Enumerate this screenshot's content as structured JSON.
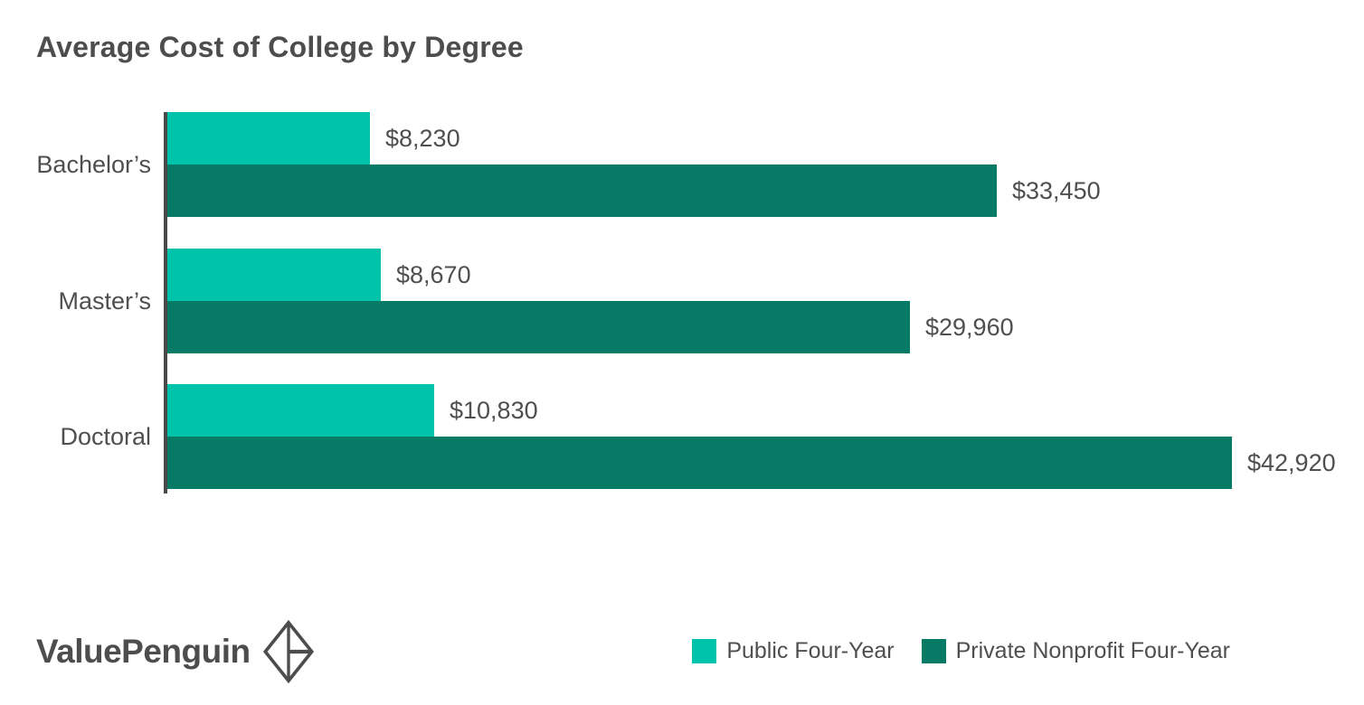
{
  "title": "Average Cost of College by Degree",
  "logo": {
    "text": "ValuePenguin",
    "icon": "valuepenguin-diamond-icon",
    "color": "#4d4d4d"
  },
  "colors": {
    "public_series": "#00C3AB",
    "private_series": "#077A65",
    "axis": "#4A4A4A",
    "title_text": "#4D4D4D",
    "label_text": "#4F4F4F",
    "background": "#FFFFFF"
  },
  "chart_data": {
    "type": "bar",
    "orientation": "horizontal",
    "title": "Average Cost of College by Degree",
    "categories": [
      "Bachelor’s",
      "Master’s",
      "Doctoral"
    ],
    "series": [
      {
        "name": "Public Four-Year",
        "color": "#00C3AB",
        "values": [
          8230,
          8670,
          10830
        ],
        "labels": [
          "$8,230",
          "$8,670",
          "$10,830"
        ]
      },
      {
        "name": "Private Nonprofit Four-Year",
        "color": "#077A65",
        "values": [
          33450,
          29960,
          42920
        ],
        "labels": [
          "$33,450",
          "$29,960",
          "$42,920"
        ]
      }
    ],
    "value_prefix": "$",
    "xlim": [
      0,
      44000
    ],
    "grid": false,
    "axis_line": true,
    "legend_position": "bottom-right",
    "value_labels_shown": true
  }
}
